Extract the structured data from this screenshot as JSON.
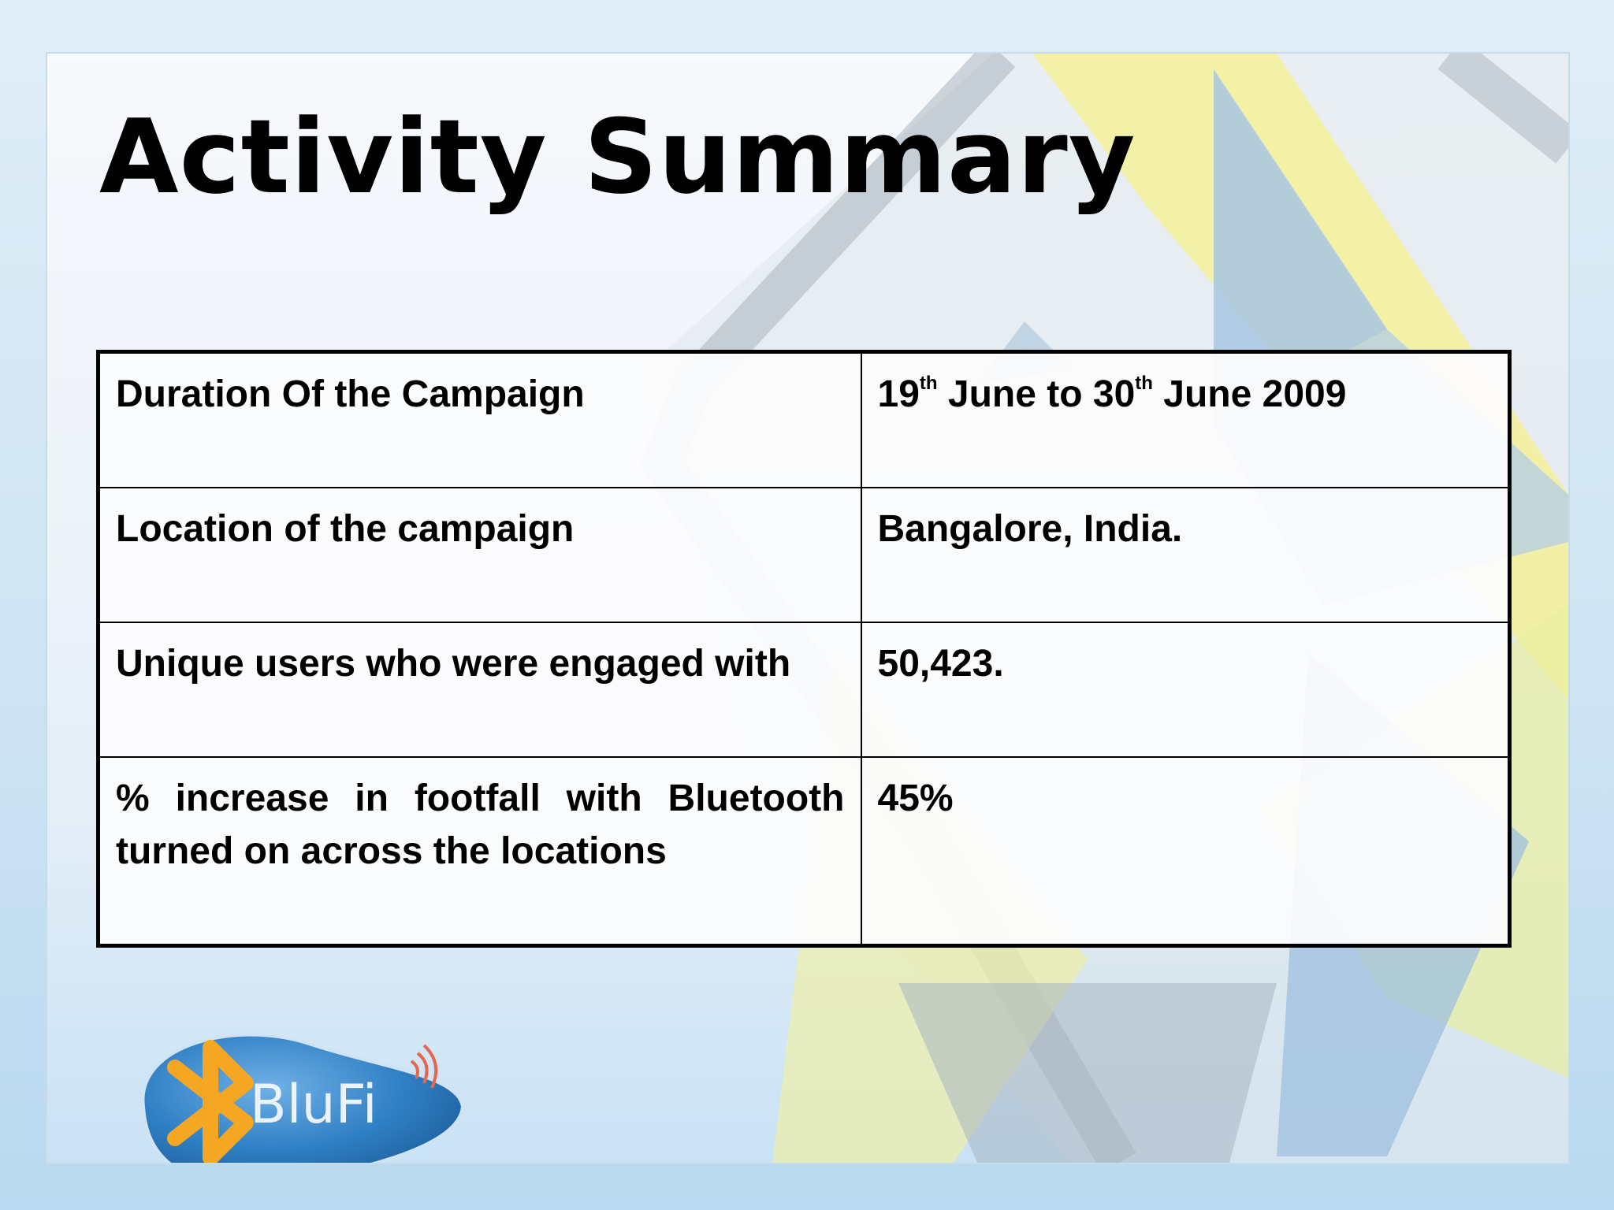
{
  "slide": {
    "title": "Activity Summary"
  },
  "summary_table": {
    "rows": [
      {
        "label": "Duration Of the Campaign",
        "value": {
          "start_day": "19",
          "start_suffix": "th",
          "start_rest": " June to ",
          "end_day": "30",
          "end_suffix": "th",
          "end_rest": " June 2009"
        }
      },
      {
        "label": "Location of the campaign",
        "value": "Bangalore, India."
      },
      {
        "label": "Unique users who were engaged with",
        "value": "50,423."
      },
      {
        "label": "% increase in footfall with Bluetooth turned on across the locations",
        "value": "45%"
      }
    ]
  },
  "logo": {
    "text": "BluFi",
    "icon": "bluetooth-icon"
  },
  "colors": {
    "logo_blue": "#2f7fc4",
    "logo_orange": "#f5a623",
    "decor_yellow": "#f2ee9a",
    "decor_blue": "#9fc3e2",
    "decor_gray": "#9aa8b4"
  }
}
